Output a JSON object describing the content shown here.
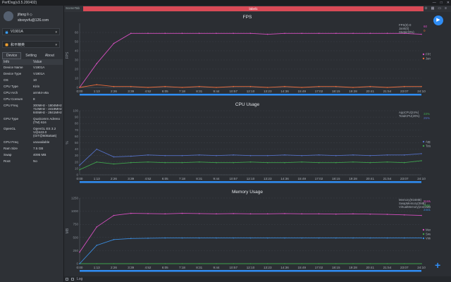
{
  "app": {
    "title": "PerfDog(v3.5.200402)",
    "win_buttons": [
      "—",
      "□",
      "✕"
    ]
  },
  "user": {
    "name": "jifang li ◇",
    "email": "sbxoyvfu@126.com"
  },
  "device_select": {
    "value": "V1901A",
    "icon": "android-icon",
    "color": "#3aa0ff"
  },
  "app_select": {
    "value": "和平精英",
    "icon": "game-icon",
    "color": "#f0a030"
  },
  "tabs": [
    "Device",
    "Setting",
    "About"
  ],
  "info": {
    "header": [
      "Info",
      "Value"
    ],
    "rows": [
      {
        "k": "Device Name",
        "v": "V1901A"
      },
      {
        "k": "Device Type",
        "v": "V1901A"
      },
      {
        "k": "OS",
        "v": "10"
      },
      {
        "k": "CPU Type",
        "v": "Kirin"
      },
      {
        "k": "CPU Arch",
        "v": "arm64-v8a"
      },
      {
        "k": "CPU Coreum",
        "v": "8"
      },
      {
        "k": "CPU Freq",
        "v": "300MHz - 1804MHz\n710MHz - 2419MHz\n845MHz - 2841MHz"
      },
      {
        "k": "GPU Type",
        "v": "Qualcomm Adreno (TM) 616"
      },
      {
        "k": "OpenGL",
        "v": "OpenGL ES 3.2 V@443.0 (GIT@608a5a6)"
      },
      {
        "k": "GPU Freq",
        "v": "unavailable"
      },
      {
        "k": "Ram Size",
        "v": "7.5 GB"
      },
      {
        "k": "Swap",
        "v": "4095 MB"
      },
      {
        "k": "Root",
        "v": "No"
      }
    ]
  },
  "scene_label": "SceneTab",
  "label_bar": "label1",
  "top_icons": [
    "location-icon",
    "chart-icon",
    "folder-icon",
    "menu-icon"
  ],
  "bottom": {
    "log_label": "Log"
  },
  "chart_data": [
    {
      "type": "line",
      "title": "FPS",
      "ylabel": "FPS",
      "ylim": [
        0,
        70
      ],
      "ticks": [
        0,
        10,
        20,
        30,
        40,
        50,
        60
      ],
      "x": [
        "0:00",
        "1:13",
        "2:26",
        "3:39",
        "4:52",
        "6:05",
        "7:18",
        "8:31",
        "9:44",
        "10:57",
        "12:10",
        "13:23",
        "14:36",
        "15:49",
        "17:02",
        "18:15",
        "19:28",
        "20:41",
        "21:54",
        "23:07",
        "24:10"
      ],
      "series": [
        {
          "name": "FPS",
          "color": "#d64fc0",
          "values": [
            0,
            26,
            48,
            59,
            59,
            59,
            59,
            59,
            59,
            59,
            59,
            58,
            59,
            59,
            59,
            59,
            59,
            59,
            59,
            59,
            58
          ]
        },
        {
          "name": "Jank",
          "color": "#e86a3a",
          "values": [
            0,
            3,
            1,
            1,
            0,
            1,
            0,
            1,
            0,
            1,
            1,
            0,
            1,
            0,
            1,
            1,
            0,
            1,
            0,
            1,
            1
          ]
        }
      ],
      "readout": [
        "FPS(0)-0",
        "Jank(0)",
        "Stutter(0%)"
      ],
      "side_values": [
        {
          "text": "60",
          "color": "#d64fc0"
        },
        {
          "text": "0",
          "color": "#e86a3a"
        }
      ]
    },
    {
      "type": "line",
      "title": "CPU Usage",
      "ylabel": "%",
      "ylim": [
        0,
        100
      ],
      "ticks": [
        0,
        10,
        20,
        30,
        40,
        50,
        60,
        70,
        80,
        90,
        100
      ],
      "x": [
        "0:00",
        "1:13",
        "2:26",
        "3:39",
        "4:52",
        "6:05",
        "7:18",
        "8:31",
        "9:44",
        "10:57",
        "12:10",
        "13:23",
        "14:36",
        "15:49",
        "17:02",
        "18:15",
        "19:28",
        "20:41",
        "21:54",
        "23:07",
        "24:10"
      ],
      "series": [
        {
          "name": "AppCPU",
          "color": "#5470c6",
          "values": [
            15,
            40,
            28,
            29,
            31,
            30,
            30,
            31,
            30,
            31,
            30,
            30,
            31,
            30,
            31,
            30,
            31,
            30,
            31,
            31,
            33
          ]
        },
        {
          "name": "TotalCPU",
          "color": "#3fa34d",
          "values": [
            8,
            20,
            17,
            19,
            20,
            19,
            19,
            20,
            19,
            19,
            20,
            19,
            19,
            20,
            19,
            19,
            20,
            19,
            20,
            19,
            22
          ]
        }
      ],
      "readout": [
        "AppCPU(24%)",
        "TotalCPU(20%)"
      ],
      "side_values": [
        {
          "text": "33%",
          "color": "#3fa34d"
        },
        {
          "text": "25%",
          "color": "#5470c6"
        }
      ]
    },
    {
      "type": "line",
      "title": "Memory Usage",
      "ylabel": "MB",
      "ylim": [
        0,
        1250
      ],
      "ticks": [
        0,
        250,
        500,
        750,
        1000,
        1250
      ],
      "x": [
        "0:00",
        "1:13",
        "2:26",
        "3:39",
        "4:52",
        "6:05",
        "7:18",
        "8:31",
        "9:44",
        "10:57",
        "12:10",
        "13:23",
        "14:36",
        "15:49",
        "17:02",
        "18:15",
        "19:28",
        "20:41",
        "21:54",
        "23:07",
        "24:10"
      ],
      "series": [
        {
          "name": "Memory",
          "color": "#d64fc0",
          "values": [
            220,
            700,
            920,
            960,
            955,
            950,
            960,
            955,
            950,
            955,
            950,
            950,
            955,
            950,
            950,
            945,
            950,
            945,
            940,
            930,
            920
          ]
        },
        {
          "name": "SwapMemory",
          "color": "#3fa34d",
          "values": [
            0,
            0,
            0,
            0,
            0,
            0,
            0,
            0,
            0,
            0,
            0,
            0,
            0,
            0,
            0,
            0,
            0,
            0,
            0,
            0,
            0
          ]
        },
        {
          "name": "VirtualMemory",
          "color": "#3a8de0",
          "values": [
            0,
            350,
            460,
            480,
            485,
            490,
            490,
            490,
            490,
            490,
            490,
            490,
            490,
            490,
            490,
            490,
            490,
            490,
            490,
            490,
            490
          ]
        }
      ],
      "readout": [
        "Memory(916MB)",
        "SwapMemory(0MB)",
        "VirtualMemory(2441MB)"
      ],
      "side_values": [
        {
          "text": "916MB",
          "color": "#d64fc0"
        },
        {
          "text": "0MB",
          "color": "#3fa34d"
        },
        {
          "text": "2441MB",
          "color": "#3a8de0"
        }
      ]
    }
  ]
}
